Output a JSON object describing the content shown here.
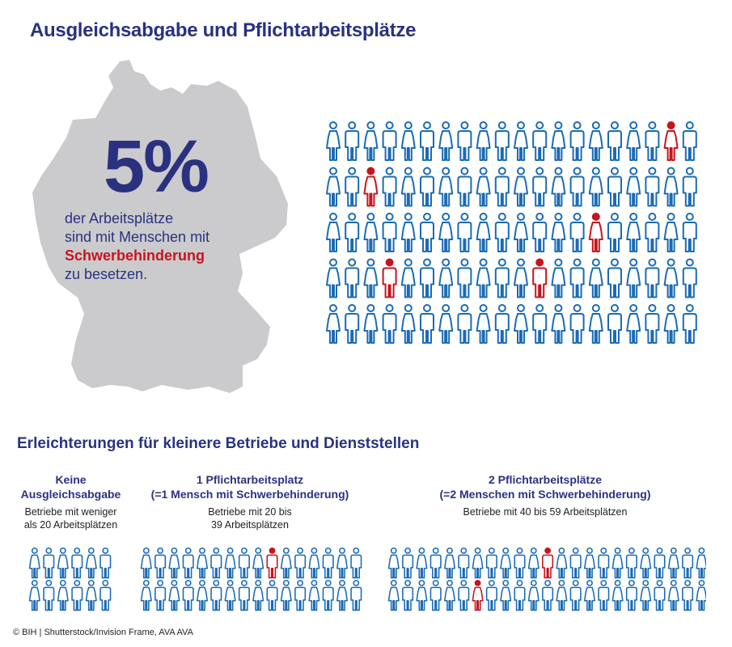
{
  "header": {
    "title": "Ausgleichsabgabe und Pflichtarbeitsplätze"
  },
  "hero": {
    "percent": "5%",
    "line1": "der Arbeitsplätze",
    "line2": "sind mit Menschen mit",
    "highlight": "Schwerbehinderung",
    "line4": "zu besetzen."
  },
  "main_grid": {
    "total_figures": 100,
    "highlighted_count": 5,
    "highlighted": [
      [
        0,
        18
      ],
      [
        1,
        2
      ],
      [
        2,
        14
      ],
      [
        3,
        3
      ],
      [
        3,
        11
      ]
    ]
  },
  "section2": {
    "title": "Erleichterungen für kleinere Betriebe und Dienststellen",
    "columns": [
      {
        "title_lines": [
          "Keine",
          "Ausgleichsabgabe"
        ],
        "sub_lines": [
          "Betriebe mit weniger",
          "als 20 Arbeitsplätzen"
        ],
        "figures": 12,
        "highlighted": []
      },
      {
        "title_lines": [
          "1 Pflichtarbeitsplatz",
          "(=1 Mensch mit Schwerbehinderung)"
        ],
        "sub_lines": [
          "Betriebe mit 20 bis",
          "39 Arbeitsplätzen"
        ],
        "figures": 32,
        "highlighted": [
          [
            0,
            9
          ]
        ]
      },
      {
        "title_lines": [
          "2 Pflichtarbeitsplätze",
          "(=2 Menschen mit Schwerbehinderung)"
        ],
        "sub_lines": [
          "Betriebe mit 40 bis 59 Arbeitsplätzen"
        ],
        "figures": 46,
        "highlighted": [
          [
            0,
            11
          ],
          [
            1,
            6
          ]
        ]
      }
    ]
  },
  "footer": {
    "credit": "© BIH | Shutterstock/Invision Frame, AVA AVA"
  },
  "colors": {
    "blue": "#1a6bb5",
    "red": "#c8141e",
    "navy": "#2a3280",
    "map": "#cbcbcd"
  }
}
